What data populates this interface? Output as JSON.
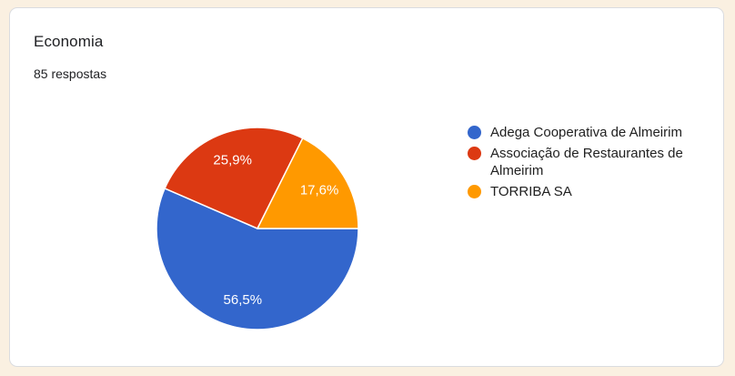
{
  "chart_data": {
    "type": "pie",
    "title": "Economia",
    "subtitle": "85 respostas",
    "start_angle_deg": 0,
    "direction": "clockwise",
    "legend_position": "right",
    "slices": [
      {
        "label": "Adega Cooperativa de Almeirim",
        "percent": 56.5,
        "percent_label": "56,5%",
        "color": "#3366cc"
      },
      {
        "label": "Associação de Restaurantes de Almeirim",
        "percent": 25.9,
        "percent_label": "25,9%",
        "color": "#dc3912"
      },
      {
        "label": "TORRIBA SA",
        "percent": 17.6,
        "percent_label": "17,6%",
        "color": "#ff9900"
      }
    ]
  },
  "colors": {
    "page_background": "#faf0e1",
    "card_background": "#ffffff",
    "card_border": "#dadce0",
    "slice_label_text": "#ffffff",
    "legend_text": "#212121",
    "title_text": "#202124"
  }
}
